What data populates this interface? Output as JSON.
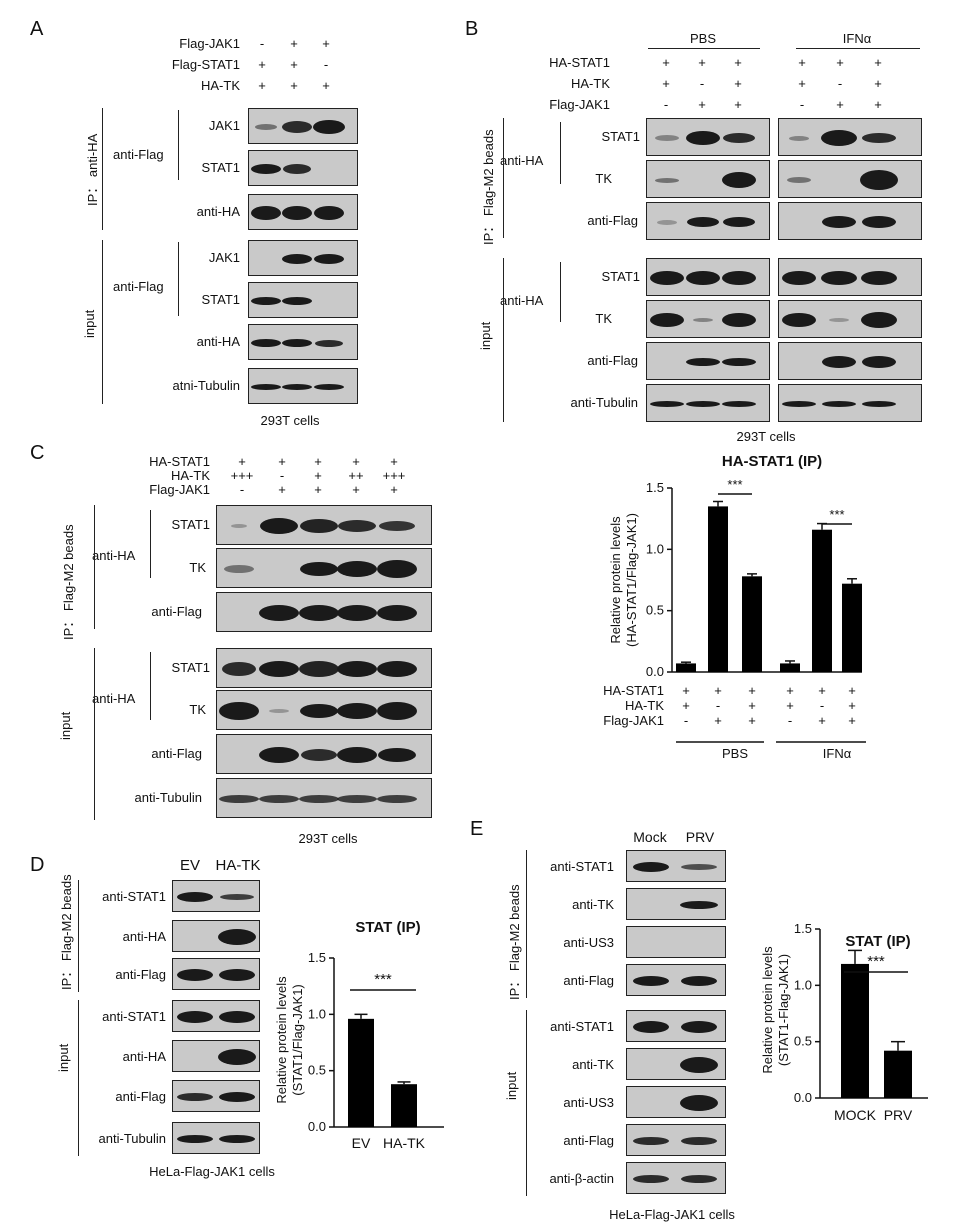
{
  "panels": {
    "A": "A",
    "B": "B",
    "C": "C",
    "D": "D",
    "E": "E"
  },
  "A": {
    "rows": [
      {
        "label": "Flag-JAK1",
        "marks": [
          "-",
          "+",
          "+"
        ]
      },
      {
        "label": "Flag-STAT1",
        "marks": [
          "+",
          "+",
          "-"
        ]
      },
      {
        "label": "HA-TK",
        "marks": [
          "+",
          "+",
          "+"
        ]
      }
    ],
    "group_ip": "IP： anti-HA",
    "group_input": "input",
    "anti_flag": "anti-Flag",
    "blots": [
      "JAK1",
      "STAT1",
      "anti-HA",
      "JAK1",
      "STAT1",
      "anti-HA",
      "atni-Tubulin"
    ],
    "footer": "293T  cells"
  },
  "B": {
    "conditions": [
      "PBS",
      "IFNα"
    ],
    "rows": [
      {
        "label": "HA-STAT1",
        "marks": [
          "+",
          "+",
          "+",
          "+",
          "+",
          "+"
        ]
      },
      {
        "label": "HA-TK",
        "marks": [
          "+",
          "-",
          "+",
          "+",
          "-",
          "+"
        ]
      },
      {
        "label": "Flag-JAK1",
        "marks": [
          "-",
          "+",
          "+",
          "-",
          "+",
          "+"
        ]
      }
    ],
    "group_ip": "IP： Flag-M2 beads",
    "group_input": "input",
    "anti_ha": "anti-HA",
    "blots": [
      "STAT1",
      "TK",
      "anti-Flag",
      "STAT1",
      "TK",
      "anti-Flag",
      "anti-Tubulin"
    ],
    "footer": "293T  cells"
  },
  "C": {
    "rows": [
      {
        "label": "HA-STAT1",
        "marks": [
          "+",
          "+",
          "+",
          "+",
          "+"
        ]
      },
      {
        "label": "HA-TK",
        "marks": [
          "+++",
          "-",
          "+",
          "++",
          "+++"
        ]
      },
      {
        "label": "Flag-JAK1",
        "marks": [
          "-",
          "+",
          "+",
          "+",
          "+"
        ]
      }
    ],
    "group_ip": "IP： Flag-M2 beads",
    "group_input": "input",
    "anti_ha": "anti-HA",
    "blots": [
      "STAT1",
      "TK",
      "anti-Flag",
      "STAT1",
      "TK",
      "anti-Flag",
      "anti-Tubulin"
    ],
    "footer": "293T  cells"
  },
  "D": {
    "lanes": [
      "EV",
      "HA-TK"
    ],
    "group_ip": "IP： Flag-M2 beads",
    "group_input": "input",
    "blots": [
      "anti-STAT1",
      "anti-HA",
      "anti-Flag",
      "anti-STAT1",
      "anti-HA",
      "anti-Flag",
      "anti-Tubulin"
    ],
    "footer": "HeLa-Flag-JAK1  cells"
  },
  "E": {
    "lanes": [
      "Mock",
      "PRV"
    ],
    "group_ip": "IP： Flag-M2 beads",
    "group_input": "input",
    "blots": [
      "anti-STAT1",
      "anti-TK",
      "anti-US3",
      "anti-Flag",
      "anti-STAT1",
      "anti-TK",
      "anti-US3",
      "anti-Flag",
      "anti-β-actin"
    ],
    "footer": "HeLa-Flag-JAK1  cells"
  },
  "chart_data": [
    {
      "type": "bar",
      "title": "HA-STAT1 (IP)",
      "ylabel": "Relative protein levels\n(HA-STAT1/Flag-JAK1)",
      "ylim": [
        0,
        1.5
      ],
      "yticks": [
        "0.0",
        "0.5",
        "1.0",
        "1.5"
      ],
      "values": [
        0.07,
        1.35,
        0.78,
        0.07,
        1.16,
        0.72
      ],
      "errors": [
        0.01,
        0.04,
        0.02,
        0.02,
        0.05,
        0.04
      ],
      "rows": [
        {
          "label": "HA-STAT1",
          "marks": [
            "+",
            "+",
            "+",
            "+",
            "+",
            "+"
          ]
        },
        {
          "label": "HA-TK",
          "marks": [
            "+",
            "-",
            "+",
            "+",
            "-",
            "+"
          ]
        },
        {
          "label": "Flag-JAK1",
          "marks": [
            "-",
            "+",
            "+",
            "-",
            "+",
            "+"
          ]
        }
      ],
      "groups": [
        "PBS",
        "IFNα"
      ],
      "significance": [
        "***",
        "***"
      ],
      "color": "#000000"
    },
    {
      "type": "bar",
      "title": "STAT (IP)",
      "ylabel": "Relative protein levels\n(STAT1/Flag-JAK1)",
      "ylim": [
        0,
        1.5
      ],
      "yticks": [
        "0.0",
        "0.5",
        "1.0",
        "1.5"
      ],
      "categories": [
        "EV",
        "HA-TK"
      ],
      "values": [
        0.96,
        0.38
      ],
      "errors": [
        0.04,
        0.02
      ],
      "significance": "***",
      "color": "#000000"
    },
    {
      "type": "bar",
      "title": "STAT (IP)",
      "ylabel": "Relative protein levels\n(STAT1-Flag-JAK1)",
      "ylim": [
        0,
        1.5
      ],
      "yticks": [
        "0.0",
        "0.5",
        "1.0",
        "1.5"
      ],
      "categories": [
        "MOCK",
        "PRV"
      ],
      "values": [
        1.19,
        0.42
      ],
      "errors": [
        0.12,
        0.08
      ],
      "significance": "***",
      "color": "#000000"
    }
  ]
}
